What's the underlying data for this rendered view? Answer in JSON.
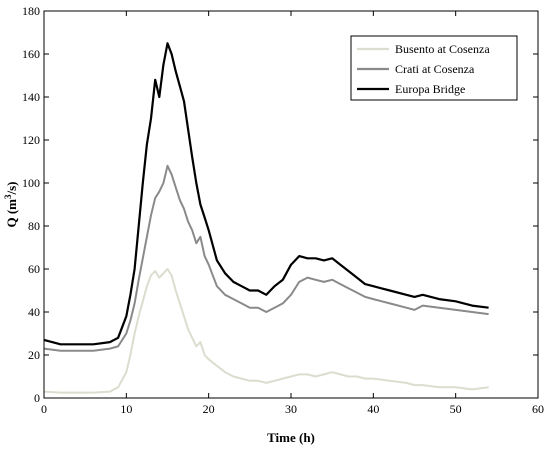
{
  "chart_data": {
    "type": "line",
    "title": "",
    "xlabel": "Time (h)",
    "ylabel_prefix": "Q (m",
    "ylabel_sup": "3",
    "ylabel_suffix": "/s)",
    "xlim": [
      0,
      60
    ],
    "ylim": [
      0,
      180
    ],
    "xticks": [
      0,
      10,
      20,
      30,
      40,
      50,
      60
    ],
    "yticks": [
      0,
      20,
      40,
      60,
      80,
      100,
      120,
      140,
      160,
      180
    ],
    "grid": false,
    "legend_placement": "top-right",
    "x": [
      0,
      2,
      4,
      6,
      8,
      9,
      10,
      10.5,
      11,
      11.5,
      12,
      12.5,
      13,
      13.5,
      14,
      14.5,
      15,
      15.5,
      16,
      16.5,
      17,
      17.5,
      18,
      18.5,
      19,
      19.5,
      20,
      21,
      22,
      23,
      24,
      25,
      26,
      27,
      28,
      29,
      30,
      31,
      32,
      33,
      34,
      35,
      36,
      37,
      38,
      39,
      40,
      42,
      44,
      45,
      46,
      48,
      50,
      52,
      54
    ],
    "series": [
      {
        "name": "Busento at Cosenza",
        "color": "#dcdccf",
        "values": [
          3,
          2.5,
          2.5,
          2.5,
          3,
          5,
          12,
          20,
          30,
          38,
          45,
          52,
          57,
          59,
          56,
          58,
          60,
          57,
          50,
          44,
          38,
          32,
          28,
          24,
          26,
          20,
          18,
          15,
          12,
          10,
          9,
          8,
          8,
          7,
          8,
          9,
          10,
          11,
          11,
          10,
          11,
          12,
          11,
          10,
          10,
          9,
          9,
          8,
          7,
          6,
          6,
          5,
          5,
          4,
          5
        ]
      },
      {
        "name": "Crati at Cosenza",
        "color": "#8a8a8a",
        "values": [
          23,
          22,
          22,
          22,
          23,
          24,
          30,
          36,
          44,
          55,
          65,
          75,
          85,
          93,
          96,
          100,
          108,
          104,
          98,
          92,
          88,
          82,
          78,
          72,
          75,
          66,
          62,
          52,
          48,
          46,
          44,
          42,
          42,
          40,
          42,
          44,
          48,
          54,
          56,
          55,
          54,
          55,
          53,
          51,
          49,
          47,
          46,
          44,
          42,
          41,
          43,
          42,
          41,
          40,
          39
        ]
      },
      {
        "name": "Europa Bridge",
        "color": "#000000",
        "values": [
          27,
          25,
          25,
          25,
          26,
          28,
          38,
          48,
          60,
          80,
          100,
          118,
          130,
          148,
          140,
          155,
          165,
          160,
          152,
          145,
          138,
          125,
          112,
          100,
          90,
          84,
          78,
          64,
          58,
          54,
          52,
          50,
          50,
          48,
          52,
          55,
          62,
          66,
          65,
          65,
          64,
          65,
          62,
          59,
          56,
          53,
          52,
          50,
          48,
          47,
          48,
          46,
          45,
          43,
          42
        ]
      }
    ]
  }
}
